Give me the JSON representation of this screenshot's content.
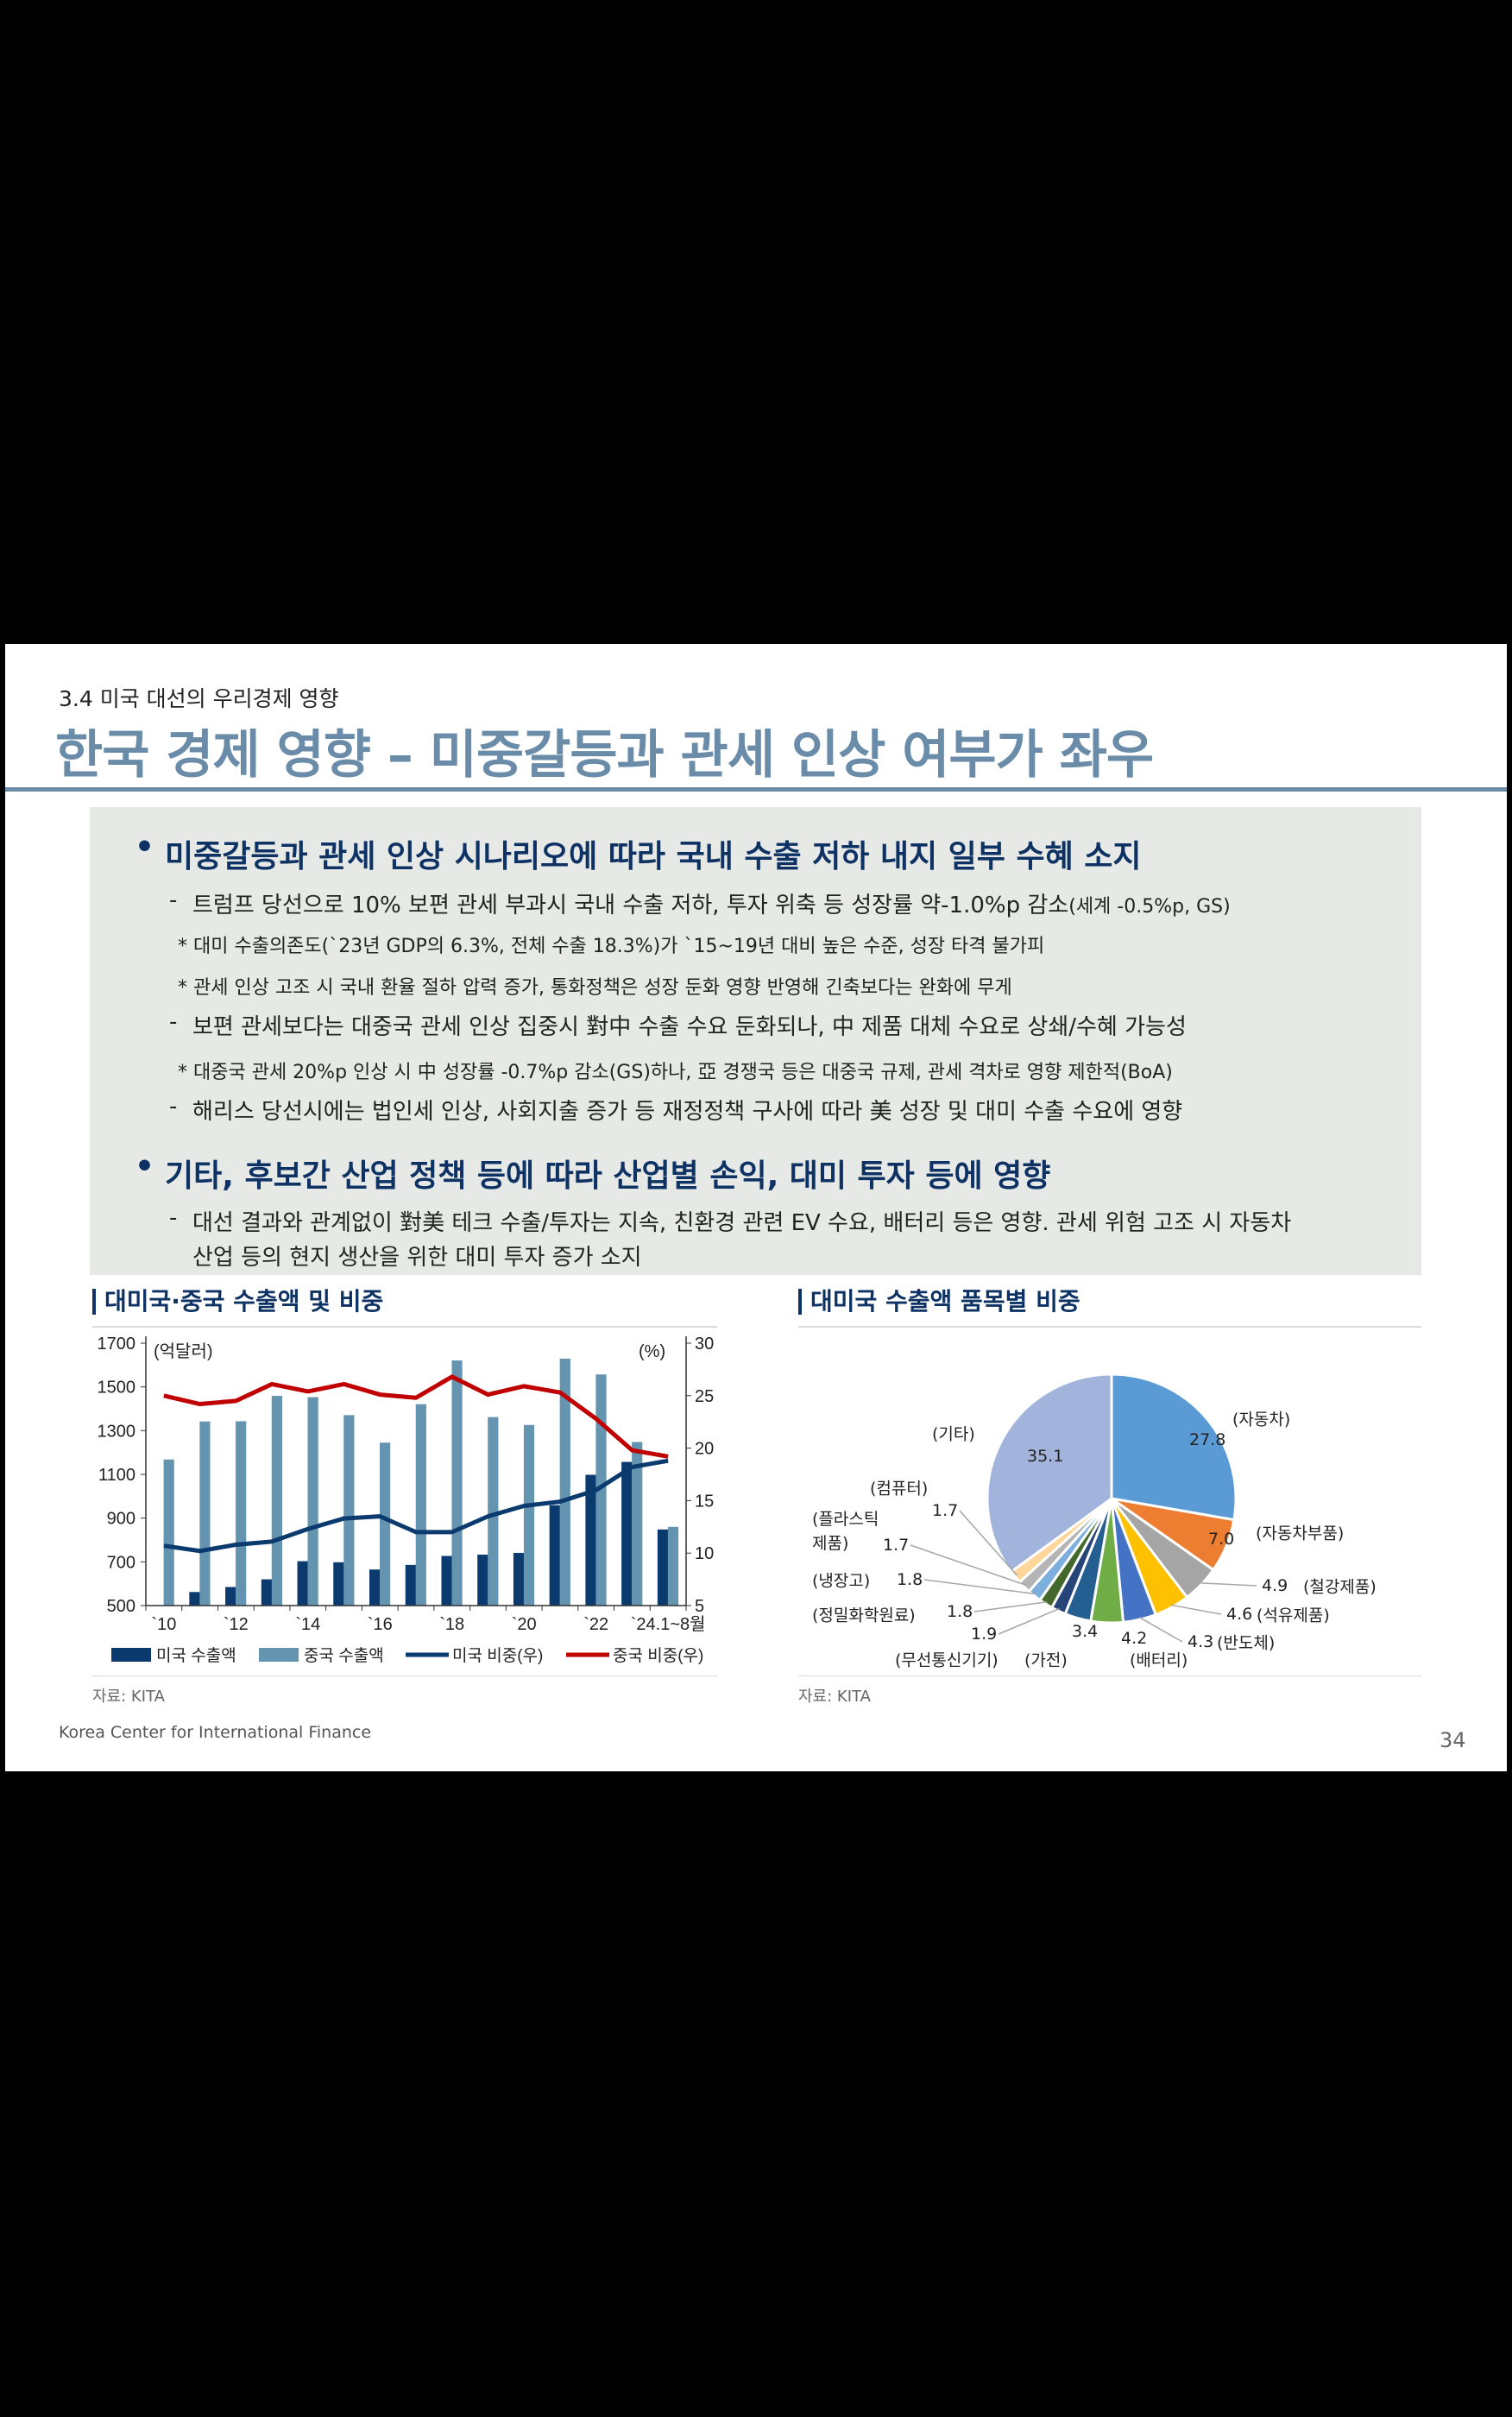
{
  "header": {
    "section": "3.4 미국 대선의 우리경제 영향",
    "title": "한국 경제 영향 – 미중갈등과 관세 인상 여부가 좌우"
  },
  "bullets": [
    {
      "head": "미중갈등과 관세 인상 시나리오에 따라 국내 수출 저하 내지 일부 수혜 소지",
      "items": [
        {
          "type": "dash",
          "text": "트럼프 당선으로 10% 보편 관세 부과시 국내 수출 저하, 투자 위축 등 성장률 약-1.0%p 감소",
          "small": "(세계 -0.5%p, GS)"
        },
        {
          "type": "note",
          "text": "* 대미 수출의존도(`23년 GDP의 6.3%, 전체 수출 18.3%)가 `15~19년 대비 높은 수준, 성장 타격 불가피"
        },
        {
          "type": "note",
          "text": "* 관세 인상 고조 시 국내 환율 절하 압력 증가, 통화정책은 성장 둔화 영향 반영해 긴축보다는 완화에 무게"
        },
        {
          "type": "dash",
          "text": "보편 관세보다는 대중국 관세 인상 집중시 對中 수출 수요 둔화되나, 中 제품 대체 수요로 상쇄/수혜 가능성"
        },
        {
          "type": "note",
          "text": "* 대중국 관세 20%p 인상 시 中 성장률 -0.7%p 감소(GS)하나, 亞 경쟁국 등은 대중국 규제, 관세 격차로 영향 제한적(BoA)"
        },
        {
          "type": "dash",
          "text": "해리스 당선시에는 법인세 인상, 사회지출 증가 등 재정정책 구사에 따라 美 성장 및 대미 수출 수요에 영향"
        }
      ]
    },
    {
      "head": "기타, 후보간 산업 정책 등에 따라 산업별 손익, 대미 투자 등에 영향",
      "items": [
        {
          "type": "dash",
          "text": "대선 결과와 관계없이 對美 테크 수출/투자는 지속, 친환경 관련 EV 수요, 배터리 등은 영향. 관세 위험 고조 시 자동차",
          "cont": "산업 등의 현지 생산을 위한 대미 투자 증가 소지"
        }
      ]
    }
  ],
  "bullet_symbol": "•",
  "dash_symbol": "-",
  "chart_data": [
    {
      "type": "bar",
      "title": "대미국·중국 수출액 및 비중",
      "categories": [
        "2010",
        "2011",
        "2012",
        "2013",
        "2014",
        "2015",
        "2016",
        "2017",
        "2018",
        "2019",
        "2020",
        "2021",
        "2022",
        "2023",
        "2024.1~8"
      ],
      "xtick_labels": [
        "`10",
        "`12",
        "`14",
        "`16",
        "`18",
        "`20",
        "`22",
        "`24.1~8월"
      ],
      "ylabel": "(억달러)",
      "y2label": "(%)",
      "ylim": [
        500,
        1700
      ],
      "y2lim": [
        5,
        30
      ],
      "yticks": [
        "500",
        "700",
        "900",
        "1100",
        "1300",
        "1500",
        "1700"
      ],
      "y2ticks": [
        "5",
        "10",
        "15",
        "20",
        "25",
        "30"
      ],
      "series": [
        {
          "name": "미국 수출액",
          "kind": "bar",
          "color": "#0b3a6e",
          "values": [
            498,
            562,
            585,
            620,
            703,
            698,
            665,
            686,
            727,
            733,
            741,
            959,
            1098,
            1157,
            848
          ]
        },
        {
          "name": "중국 수출액",
          "kind": "bar",
          "color": "#6594b1",
          "values": [
            1168,
            1342,
            1343,
            1459,
            1453,
            1371,
            1245,
            1421,
            1621,
            1362,
            1326,
            1629,
            1557,
            1248,
            860
          ]
        },
        {
          "name": "미국 비중(우)",
          "kind": "line",
          "axis": "right",
          "color": "#0b3a6e",
          "values": [
            10.7,
            10.2,
            10.8,
            11.1,
            12.3,
            13.3,
            13.5,
            12.0,
            12.0,
            13.5,
            14.5,
            14.9,
            16.0,
            18.2,
            18.8
          ]
        },
        {
          "name": "중국 비중(우)",
          "kind": "line",
          "axis": "right",
          "color": "#c00000",
          "values": [
            25.0,
            24.2,
            24.5,
            26.1,
            25.4,
            26.1,
            25.1,
            24.8,
            26.8,
            25.1,
            25.9,
            25.3,
            22.8,
            19.8,
            19.2
          ]
        }
      ],
      "legend": "bottom",
      "source": "자료: KITA"
    },
    {
      "type": "pie",
      "title": "대미국 수출액 품목별 비중",
      "source": "자료: KITA",
      "slices": [
        {
          "label": "(자동차)",
          "value": 27.8,
          "color": "#5b9bd5"
        },
        {
          "label": "(자동차부품)",
          "value": 7.0,
          "color": "#ed7d31"
        },
        {
          "label": "(철강제품)",
          "value": 4.9,
          "color": "#a5a5a5"
        },
        {
          "label": "(석유제품)",
          "value": 4.6,
          "color": "#ffc000"
        },
        {
          "label": "(반도체)",
          "value": 4.3,
          "color": "#4472c4"
        },
        {
          "label": "(배터리)",
          "value": 4.2,
          "color": "#70ad47"
        },
        {
          "label": "(가전)",
          "value": 3.4,
          "color": "#255e91"
        },
        {
          "label": "(무선통신기기)",
          "value": 1.9,
          "color": "#264478"
        },
        {
          "label": "(정밀화학원료)",
          "value": 1.8,
          "color": "#43682b"
        },
        {
          "label": "(냉장고)",
          "value": 1.8,
          "color": "#7cafdd"
        },
        {
          "label": "(플라스틱 제품)",
          "value": 1.7,
          "color": "#b4b4b4"
        },
        {
          "label": "(컴퓨터)",
          "value": 1.7,
          "color": "#ffd699"
        },
        {
          "label": "(기타)",
          "value": 35.1,
          "color": "#a2b4dc"
        }
      ]
    }
  ],
  "footer": {
    "org": "Korea Center for International Finance",
    "page": "34"
  }
}
